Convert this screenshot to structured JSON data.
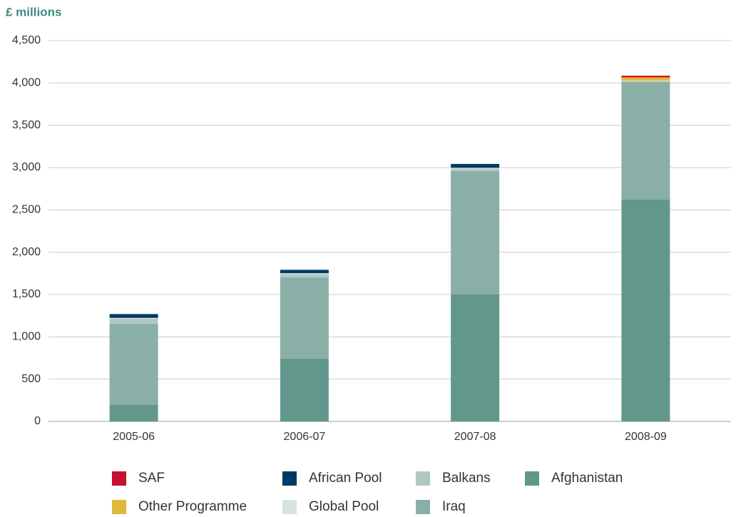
{
  "chart_data": {
    "type": "stacked_bar",
    "y_label": "£ millions",
    "categories": [
      "2005-06",
      "2006-07",
      "2007-08",
      "2008-09"
    ],
    "series": [
      {
        "name": "SAF",
        "color": "#c8102e",
        "values": [
          0,
          0,
          0,
          20
        ]
      },
      {
        "name": "Other Programme",
        "color": "#e0b83a",
        "values": [
          0,
          0,
          0,
          40
        ]
      },
      {
        "name": "African Pool",
        "color": "#003a63",
        "values": [
          45,
          40,
          45,
          0
        ]
      },
      {
        "name": "Global Pool",
        "color": "#d6e3e0",
        "values": [
          10,
          10,
          10,
          5
        ]
      },
      {
        "name": "Balkans",
        "color": "#b0c8c3",
        "values": [
          60,
          40,
          30,
          10
        ]
      },
      {
        "name": "Iraq",
        "color": "#8aafa6",
        "values": [
          955,
          960,
          1458,
          1390
        ]
      },
      {
        "name": "Afghanistan",
        "color": "#62978c",
        "values": [
          199,
          742,
          1500,
          2621
        ]
      }
    ],
    "ylim": [
      0,
      4500
    ],
    "yticks": [
      0,
      500,
      {
        "value": 1000,
        "label": "1,000"
      },
      {
        "value": 1500,
        "label": "1,500"
      },
      {
        "value": 2000,
        "label": "2,000"
      },
      {
        "value": 2500,
        "label": "2,500"
      },
      {
        "value": 3000,
        "label": "3,000"
      },
      {
        "value": 3500,
        "label": "3,500"
      },
      {
        "value": 4000,
        "label": "4,000"
      },
      {
        "value": 4500,
        "label": "4,500"
      }
    ],
    "grid": true
  }
}
